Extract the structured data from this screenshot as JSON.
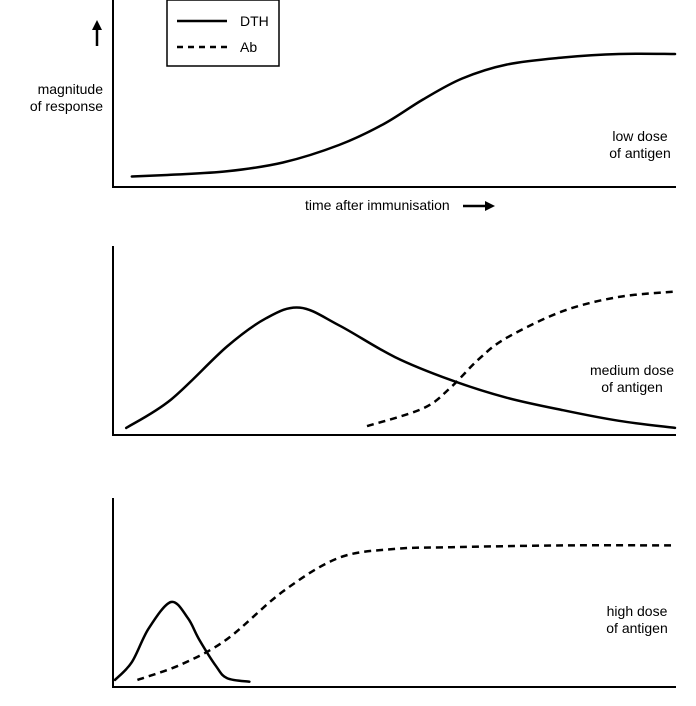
{
  "legend": {
    "items": [
      {
        "label": "DTH",
        "style": "solid"
      },
      {
        "label": "Ab",
        "style": "dashed"
      }
    ]
  },
  "axis": {
    "ylabel_line1": "magnitude",
    "ylabel_line2": "of response",
    "xlabel": "time after immunisation"
  },
  "chart_data": [
    {
      "type": "line",
      "panel_label_line1": "low dose",
      "panel_label_line2": "of antigen",
      "xlim": [
        0,
        100
      ],
      "ylim": [
        0,
        100
      ],
      "series": [
        {
          "name": "DTH",
          "style": "solid",
          "x": [
            3,
            10,
            20,
            30,
            40,
            48,
            55,
            62,
            70,
            80,
            90,
            100
          ],
          "y": [
            6,
            7,
            9,
            14,
            24,
            36,
            50,
            62,
            70,
            74,
            76,
            76
          ]
        }
      ]
    },
    {
      "type": "line",
      "panel_label_line1": "medium dose",
      "panel_label_line2": "of antigen",
      "xlim": [
        0,
        100
      ],
      "ylim": [
        0,
        100
      ],
      "series": [
        {
          "name": "DTH",
          "style": "solid",
          "x": [
            2,
            10,
            20,
            27,
            33,
            40,
            50,
            60,
            70,
            80,
            90,
            100
          ],
          "y": [
            4,
            20,
            50,
            66,
            72,
            62,
            44,
            31,
            21,
            14,
            8,
            4
          ]
        },
        {
          "name": "Ab",
          "style": "dashed",
          "x": [
            45,
            55,
            60,
            65,
            70,
            80,
            90,
            100
          ],
          "y": [
            5,
            15,
            27,
            43,
            55,
            70,
            78,
            81
          ]
        }
      ]
    },
    {
      "type": "line",
      "panel_label_line1": "high dose",
      "panel_label_line2": "of antigen",
      "xlim": [
        0,
        100
      ],
      "ylim": [
        0,
        100
      ],
      "series": [
        {
          "name": "DTH",
          "style": "solid",
          "x": [
            0,
            3,
            6,
            10,
            13,
            15,
            18,
            20,
            24
          ],
          "y": [
            4,
            14,
            33,
            48,
            39,
            27,
            12,
            5,
            3
          ]
        },
        {
          "name": "Ab",
          "style": "dashed",
          "x": [
            4,
            12,
            20,
            30,
            40,
            50,
            60,
            80,
            100
          ],
          "y": [
            4,
            13,
            27,
            54,
            73,
            78,
            79,
            80,
            80
          ]
        }
      ]
    }
  ]
}
